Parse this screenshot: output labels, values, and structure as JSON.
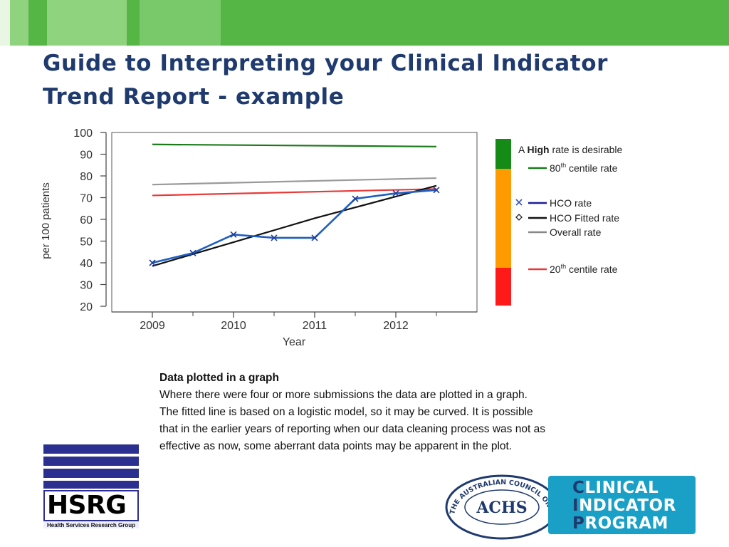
{
  "slide": {
    "title_line1": "Guide to Interpreting your Clinical Indicator",
    "title_line2": "Trend Report - example"
  },
  "colors": {
    "banner_green": "#55b545",
    "title_blue": "#1f3a6e",
    "high_band": "#168a16",
    "mid_band": "#ff9a00",
    "low_band": "#ff1a1a"
  },
  "chart_data": {
    "type": "line",
    "ylabel": "per 100 patients",
    "xlabel": "Year",
    "ylim": [
      20,
      100
    ],
    "yticks": [
      100,
      90,
      80,
      70,
      60,
      50,
      40,
      30,
      20
    ],
    "xlim": [
      2008.5,
      2013.0
    ],
    "xticks": [
      2009,
      2010,
      2011,
      2012
    ],
    "grid": false,
    "legend_position": "right",
    "series": [
      {
        "name": "80th centile rate",
        "style": "line",
        "color": "#1a7a1a",
        "x": [
          2009,
          2012.5
        ],
        "y": [
          94.5,
          93.5
        ]
      },
      {
        "name": "Overall rate",
        "style": "line",
        "color": "#999999",
        "x": [
          2009,
          2012.5
        ],
        "y": [
          76,
          79
        ]
      },
      {
        "name": "20th centile rate",
        "style": "line",
        "color": "#e83a3a",
        "x": [
          2009,
          2012.5
        ],
        "y": [
          71,
          74
        ]
      },
      {
        "name": "HCO Fitted rate",
        "style": "line",
        "color": "#111111",
        "x": [
          2009,
          2009.5,
          2010,
          2010.5,
          2011,
          2011.5,
          2012,
          2012.5
        ],
        "y": [
          38.5,
          44,
          49.5,
          55,
          60.5,
          65.5,
          70.5,
          75.5
        ]
      },
      {
        "name": "HCO rate",
        "style": "line-marker",
        "color": "#1f5fbf",
        "x": [
          2009,
          2009.5,
          2010,
          2010.5,
          2011,
          2011.5,
          2012,
          2012.5
        ],
        "y": [
          40,
          44.5,
          53,
          51.5,
          51.5,
          69.5,
          72,
          73.5
        ]
      }
    ],
    "bands": [
      {
        "label_pre": "A ",
        "label_bold": "High",
        "label_post": " rate is desirable",
        "color": "#168a16"
      },
      {
        "label_pre": "",
        "label_bold": "",
        "label_post": "",
        "color": "#ff9a00"
      },
      {
        "label_pre": "",
        "label_bold": "",
        "label_post": "",
        "color": "#ff1a1a"
      }
    ],
    "legend": [
      {
        "pre": "80",
        "sup": "th",
        "post": " centile rate",
        "color": "#1a7a1a",
        "marker": ""
      },
      {
        "pre": "HCO rate",
        "sup": "",
        "post": "",
        "color": "#1e1e99",
        "marker": "x"
      },
      {
        "pre": "HCO Fitted rate",
        "sup": "",
        "post": "",
        "color": "#111111",
        "marker": "diamond"
      },
      {
        "pre": "Overall rate",
        "sup": "",
        "post": "",
        "color": "#888888",
        "marker": ""
      },
      {
        "pre": "20",
        "sup": "th",
        "post": " centile rate",
        "color": "#e83a3a",
        "marker": ""
      }
    ]
  },
  "description": {
    "heading": "Data plotted in a graph",
    "body": "Where there were four or more submissions the data are plotted in a graph.  The fitted line is based on a logistic model, so it may be curved.  It is possible that in the earlier years of reporting when our data cleaning process was not as effective as now, some aberrant data points may be apparent in the plot."
  },
  "logos": {
    "hsrg_name": "HSRG",
    "hsrg_sub": "Health Services Research Group",
    "achs_ring": "THE AUSTRALIAN COUNCIL ON HEALTHCARE STANDARDS",
    "achs_name": "ACHS",
    "cip_line1_cap": "C",
    "cip_line1_rest": "LINICAL",
    "cip_line2_cap": "I",
    "cip_line2_rest": "NDICATOR",
    "cip_line3_cap": "P",
    "cip_line3_rest": "ROGRAM"
  }
}
